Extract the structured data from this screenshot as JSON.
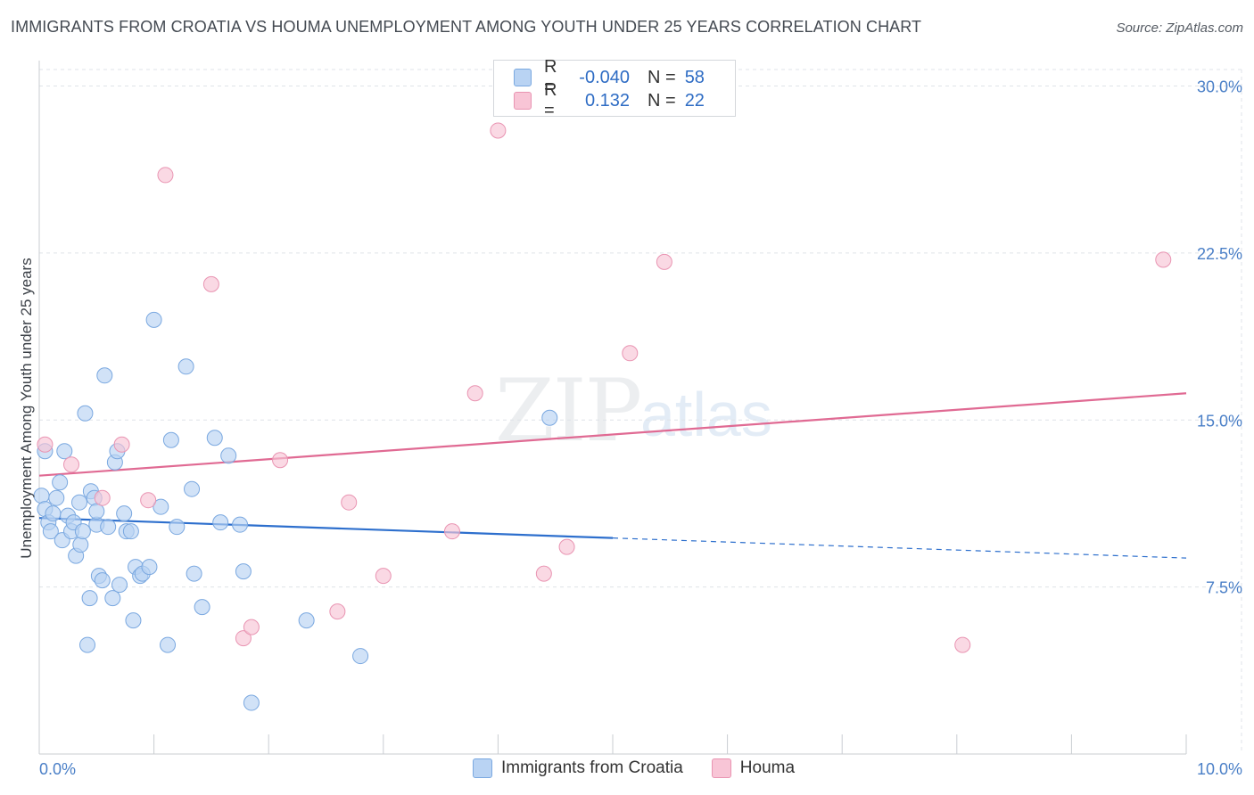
{
  "title": "IMMIGRANTS FROM CROATIA VS HOUMA UNEMPLOYMENT AMONG YOUTH UNDER 25 YEARS CORRELATION CHART",
  "source": "Source: ZipAtlas.com",
  "watermark": {
    "zip": "ZIP",
    "atlas": "atlas"
  },
  "colors": {
    "blue_fill": "#b9d3f3",
    "blue_stroke": "#7aa8e0",
    "blue_line": "#2d6fcd",
    "pink_fill": "#f8c5d6",
    "pink_stroke": "#e994b2",
    "pink_line": "#e06a93",
    "grid": "#dfe3e8",
    "tick_text": "#4a7fc7"
  },
  "legend": {
    "rows": [
      {
        "label": "R =",
        "r": "-0.040",
        "n_label": "N =",
        "n": "58",
        "series": "blue"
      },
      {
        "label": "R =",
        "r": "0.132",
        "n_label": "N =",
        "n": "22",
        "series": "pink"
      }
    ]
  },
  "bottom_legend": [
    "Immigrants from Croatia",
    "Houma"
  ],
  "chart_data": {
    "type": "scatter",
    "title": "IMMIGRANTS FROM CROATIA VS HOUMA UNEMPLOYMENT AMONG YOUTH UNDER 25 YEARS CORRELATION CHART",
    "xlabel": "",
    "ylabel": "Unemployment Among Youth under 25 years",
    "xlim": [
      0,
      10
    ],
    "ylim": [
      0,
      30
    ],
    "x_tick_labels": [
      "0.0%",
      "10.0%"
    ],
    "y_ticks": [
      7.5,
      15.0,
      22.5,
      30.0
    ],
    "y_tick_labels": [
      "7.5%",
      "15.0%",
      "22.5%",
      "30.0%"
    ],
    "series": [
      {
        "name": "Immigrants from Croatia",
        "color": "blue",
        "points": [
          [
            0.02,
            11.6
          ],
          [
            0.05,
            13.6
          ],
          [
            0.05,
            11.0
          ],
          [
            0.08,
            10.4
          ],
          [
            0.1,
            10.0
          ],
          [
            0.12,
            10.8
          ],
          [
            0.15,
            11.5
          ],
          [
            0.18,
            12.2
          ],
          [
            0.2,
            9.6
          ],
          [
            0.22,
            13.6
          ],
          [
            0.25,
            10.7
          ],
          [
            0.28,
            10.0
          ],
          [
            0.3,
            10.4
          ],
          [
            0.32,
            8.9
          ],
          [
            0.35,
            11.3
          ],
          [
            0.36,
            9.4
          ],
          [
            0.38,
            10.0
          ],
          [
            0.4,
            15.3
          ],
          [
            0.42,
            4.9
          ],
          [
            0.44,
            7.0
          ],
          [
            0.45,
            11.8
          ],
          [
            0.48,
            11.5
          ],
          [
            0.5,
            10.3
          ],
          [
            0.5,
            10.9
          ],
          [
            0.52,
            8.0
          ],
          [
            0.55,
            7.8
          ],
          [
            0.57,
            17.0
          ],
          [
            0.6,
            10.2
          ],
          [
            0.64,
            7.0
          ],
          [
            0.66,
            13.1
          ],
          [
            0.68,
            13.6
          ],
          [
            0.7,
            7.6
          ],
          [
            0.74,
            10.8
          ],
          [
            0.76,
            10.0
          ],
          [
            0.8,
            10.0
          ],
          [
            0.82,
            6.0
          ],
          [
            0.84,
            8.4
          ],
          [
            0.88,
            8.0
          ],
          [
            0.9,
            8.1
          ],
          [
            0.96,
            8.4
          ],
          [
            1.0,
            19.5
          ],
          [
            1.06,
            11.1
          ],
          [
            1.12,
            4.9
          ],
          [
            1.15,
            14.1
          ],
          [
            1.2,
            10.2
          ],
          [
            1.28,
            17.4
          ],
          [
            1.33,
            11.9
          ],
          [
            1.35,
            8.1
          ],
          [
            1.42,
            6.6
          ],
          [
            1.53,
            14.2
          ],
          [
            1.58,
            10.4
          ],
          [
            1.65,
            13.4
          ],
          [
            1.75,
            10.3
          ],
          [
            1.78,
            8.2
          ],
          [
            1.85,
            2.3
          ],
          [
            2.33,
            6.0
          ],
          [
            2.8,
            4.4
          ],
          [
            4.45,
            15.1
          ]
        ]
      },
      {
        "name": "Houma",
        "color": "pink",
        "points": [
          [
            0.05,
            13.9
          ],
          [
            0.28,
            13.0
          ],
          [
            0.55,
            11.5
          ],
          [
            0.72,
            13.9
          ],
          [
            0.95,
            11.4
          ],
          [
            1.1,
            26.0
          ],
          [
            1.5,
            21.1
          ],
          [
            1.78,
            5.2
          ],
          [
            1.85,
            5.7
          ],
          [
            2.1,
            13.2
          ],
          [
            2.6,
            6.4
          ],
          [
            2.7,
            11.3
          ],
          [
            3.0,
            8.0
          ],
          [
            3.6,
            10.0
          ],
          [
            3.8,
            16.2
          ],
          [
            4.0,
            28.0
          ],
          [
            4.4,
            8.1
          ],
          [
            4.6,
            9.3
          ],
          [
            5.15,
            18.0
          ],
          [
            5.45,
            22.1
          ],
          [
            8.05,
            4.9
          ],
          [
            9.8,
            22.2
          ]
        ]
      }
    ],
    "trendlines": [
      {
        "series": "Immigrants from Croatia",
        "solid_x": [
          0.0,
          5.0
        ],
        "solid_y": [
          10.6,
          9.7
        ],
        "dashed_x": [
          5.0,
          10.0
        ],
        "dashed_y": [
          9.7,
          8.8
        ]
      },
      {
        "series": "Houma",
        "solid_x": [
          0.0,
          10.0
        ],
        "solid_y": [
          12.5,
          16.2
        ]
      }
    ],
    "legend_position": "top-center"
  }
}
